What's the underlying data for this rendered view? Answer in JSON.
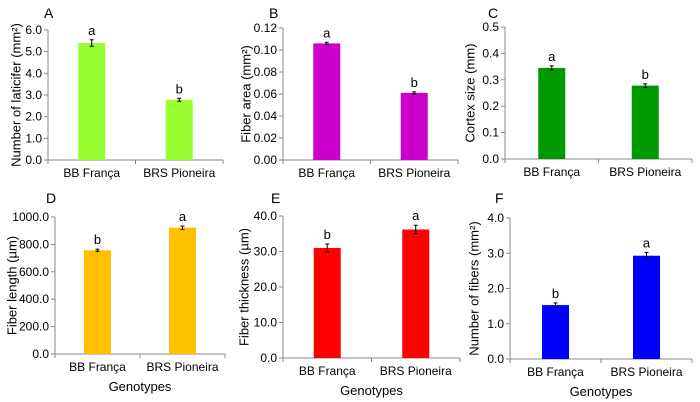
{
  "chart_data": [
    {
      "panel": "A",
      "type": "bar",
      "categories": [
        "BB França",
        "BRS Pioneira"
      ],
      "values": [
        5.4,
        2.78
      ],
      "errors": [
        0.15,
        0.07
      ],
      "letters": [
        "a",
        "b"
      ],
      "ylabel": "Number of laticifer (mm²)",
      "xlabel": "",
      "ylim": [
        0,
        6
      ],
      "yticks": [
        "0.0",
        "1.0",
        "2.0",
        "3.0",
        "4.0",
        "5.0",
        "6.0"
      ],
      "color": "#99ff33",
      "grid": false
    },
    {
      "panel": "B",
      "type": "bar",
      "categories": [
        "BB França",
        "BRS Pioneira"
      ],
      "values": [
        0.106,
        0.061
      ],
      "errors": [
        0.001,
        0.001
      ],
      "letters": [
        "a",
        "b"
      ],
      "ylabel": "Fiber area (mm²)",
      "xlabel": "",
      "ylim": [
        0,
        0.12
      ],
      "yticks": [
        "0.00",
        "0.02",
        "0.04",
        "0.06",
        "0.08",
        "0.10",
        "0.12"
      ],
      "color": "#cc00cc",
      "grid": false
    },
    {
      "panel": "C",
      "type": "bar",
      "categories": [
        "BB França",
        "BRS Pioneira"
      ],
      "values": [
        0.345,
        0.278
      ],
      "errors": [
        0.008,
        0.007
      ],
      "letters": [
        "a",
        "b"
      ],
      "ylabel": "Cortex size (mm)",
      "xlabel": "",
      "ylim": [
        0,
        0.5
      ],
      "yticks": [
        "0.0",
        "0.1",
        "0.2",
        "0.3",
        "0.4",
        "0.5"
      ],
      "color": "#009900",
      "grid": false
    },
    {
      "panel": "D",
      "type": "bar",
      "categories": [
        "BB França",
        "BRS Pioneira"
      ],
      "values": [
        757,
        922
      ],
      "errors": [
        8,
        12
      ],
      "letters": [
        "b",
        "a"
      ],
      "ylabel": "Fiber length (µm)",
      "xlabel": "Genotypes",
      "ylim": [
        0,
        1000
      ],
      "yticks": [
        "0.0",
        "200.0",
        "400.0",
        "600.0",
        "800.0",
        "1000.0"
      ],
      "color": "#ffc000",
      "grid": false
    },
    {
      "panel": "E",
      "type": "bar",
      "categories": [
        "BB França",
        "BRS Pioneira"
      ],
      "values": [
        31.0,
        36.2
      ],
      "errors": [
        1.1,
        1.2
      ],
      "letters": [
        "b",
        "a"
      ],
      "ylabel": "Fiber thickness (µm)",
      "xlabel": "Genotypes",
      "ylim": [
        0,
        40
      ],
      "yticks": [
        "0.0",
        "10.0",
        "20.0",
        "30.0",
        "40.0"
      ],
      "color": "#ff0000",
      "grid": false
    },
    {
      "panel": "F",
      "type": "bar",
      "categories": [
        "BB França",
        "BRS Pioneira"
      ],
      "values": [
        1.53,
        2.93
      ],
      "errors": [
        0.06,
        0.09
      ],
      "letters": [
        "b",
        "a"
      ],
      "ylabel": "Number of fibers (mm²)",
      "xlabel": "Genotypes",
      "ylim": [
        0,
        4
      ],
      "yticks": [
        "0.0",
        "1.0",
        "2.0",
        "3.0",
        "4.0"
      ],
      "color": "#0000ff",
      "grid": false
    }
  ]
}
